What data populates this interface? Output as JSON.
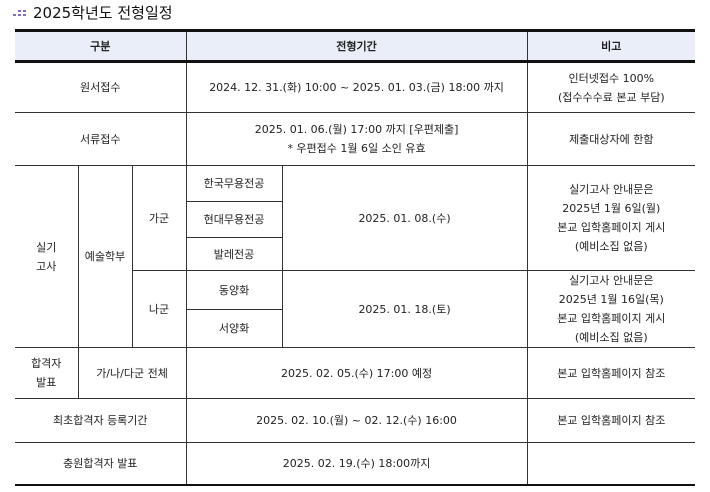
{
  "title": "2025학년도 전형일정",
  "header": {
    "category": "구분",
    "period": "전형기간",
    "remarks": "비고"
  },
  "rows": {
    "application": {
      "label": "원서접수",
      "period": "2024. 12. 31.(화) 10:00  ~  2025. 01. 03.(금) 18:00 까지",
      "remarks1": "인터넷접수 100%",
      "remarks2": "(접수수수료 본교 부담)"
    },
    "documents": {
      "label": "서류접수",
      "period1": "2025. 01. 06.(월) 17:00 까지  [우편제출]",
      "period2": "* 우편접수 1월 6일 소인 유효",
      "remarks": "제출대상자에 한함"
    },
    "practical": {
      "label": "실기 고사",
      "dept": "예술학부",
      "ga": {
        "group": "가군",
        "majors": [
          "한국무용전공",
          "현대무용전공",
          "발레전공"
        ],
        "date": "2025. 01. 08.(수)",
        "remarks": [
          "실기고사 안내문은",
          "2025년 1월 6일(월)",
          "본교 입학홈페이지 게시",
          "(예비소집 없음)"
        ]
      },
      "na": {
        "group": "나군",
        "majors": [
          "동양화",
          "서양화"
        ],
        "date": "2025. 01. 18.(토)",
        "remarks": [
          "실기고사 안내문은",
          "2025년 1월 16일(목)",
          "본교 입학홈페이지 게시",
          "(예비소집 없음)"
        ]
      }
    },
    "announce": {
      "label": "합격자 발표",
      "scope": "가/나/다군 전체",
      "period": "2025. 02. 05.(수) 17:00 예정",
      "remarks": "본교 입학홈페이지 참조"
    },
    "registration": {
      "label": "최초합격자 등록기간",
      "period": "2025. 02. 10.(월) ~ 02. 12.(수) 16:00",
      "remarks": "본교 입학홈페이지 참조"
    },
    "additional": {
      "label": "충원합격자 발표",
      "period": "2025. 02. 19.(수) 18:00까지",
      "remarks": ""
    }
  }
}
